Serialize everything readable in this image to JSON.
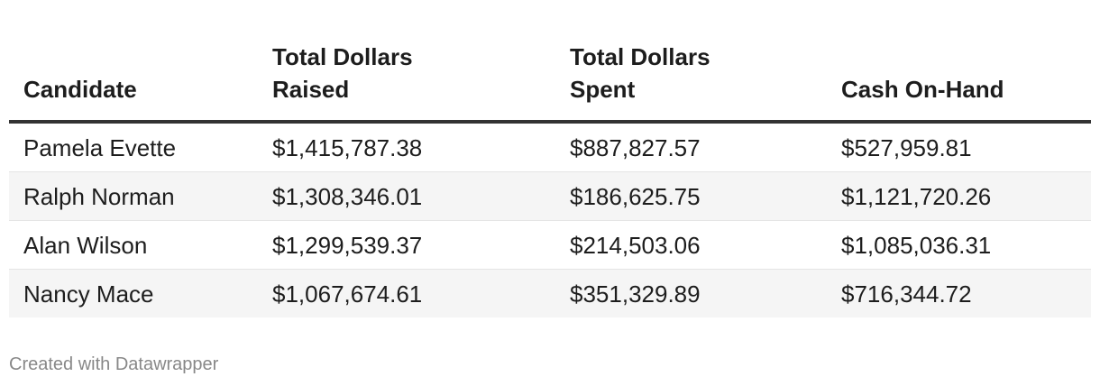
{
  "chart_data": {
    "type": "table",
    "columns": [
      "Candidate",
      "Total Dollars Raised",
      "Total Dollars Spent",
      "Cash On-Hand"
    ],
    "rows": [
      [
        "Pamela Evette",
        "$1,415,787.38",
        "$887,827.57",
        "$527,959.81"
      ],
      [
        "Ralph Norman",
        "$1,308,346.01",
        "$186,625.75",
        "$1,121,720.26"
      ],
      [
        "Alan Wilson",
        "$1,299,539.37",
        "$214,503.06",
        "$1,085,036.31"
      ],
      [
        "Nancy Mace",
        "$1,067,674.61",
        "$351,329.89",
        "$716,344.72"
      ]
    ],
    "header_lines": [
      [
        "Candidate"
      ],
      [
        "Total Dollars",
        "Raised"
      ],
      [
        "Total Dollars",
        "Spent"
      ],
      [
        "Cash On-Hand"
      ]
    ]
  },
  "footer": {
    "credit": "Created with Datawrapper"
  },
  "colors": {
    "header_rule": "#333333",
    "stripe": "#f5f5f5",
    "row_divider": "#e5e5e5",
    "footer_text": "#888888"
  }
}
